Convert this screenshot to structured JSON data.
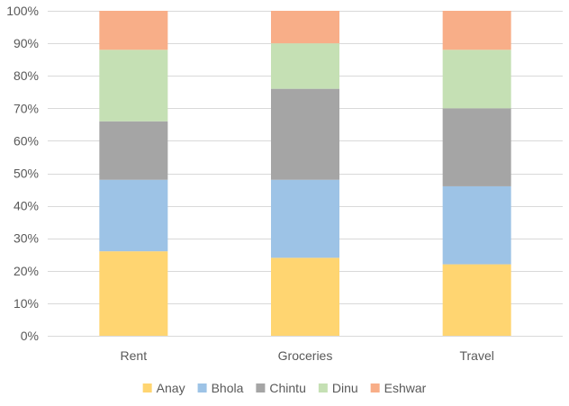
{
  "chart_data": {
    "type": "bar",
    "stacking": "percent",
    "categories": [
      "Rent",
      "Groceries",
      "Travel"
    ],
    "series": [
      {
        "name": "Anay",
        "color": "#FFD571",
        "values": [
          26,
          24,
          22
        ]
      },
      {
        "name": "Bhola",
        "color": "#9DC3E6",
        "values": [
          22,
          24,
          24
        ]
      },
      {
        "name": "Chintu",
        "color": "#A5A5A5",
        "values": [
          18,
          28,
          24
        ]
      },
      {
        "name": "Dinu",
        "color": "#C5E0B4",
        "values": [
          22,
          14,
          18
        ]
      },
      {
        "name": "Eshwar",
        "color": "#F8AE88",
        "values": [
          12,
          10,
          12
        ]
      }
    ],
    "y_ticks": [
      "0%",
      "10%",
      "20%",
      "30%",
      "40%",
      "50%",
      "60%",
      "70%",
      "80%",
      "90%",
      "100%"
    ],
    "ylim": [
      0,
      100
    ],
    "grid": true,
    "legend_position": "bottom"
  }
}
